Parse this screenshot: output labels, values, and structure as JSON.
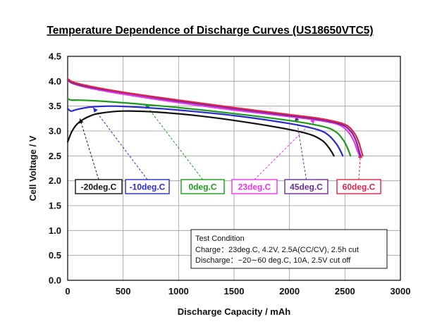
{
  "chart_data": {
    "type": "line",
    "title": "Temperature Dependence of Discharge Curves (US18650VTC5)",
    "xlabel": "Discharge Capacity / mAh",
    "ylabel": "Cell Voltage / V",
    "xlim": [
      0,
      3000
    ],
    "ylim": [
      0,
      4.5
    ],
    "x_ticks": [
      "0",
      "500",
      "1000",
      "1500",
      "2000",
      "2500",
      "3000"
    ],
    "y_ticks": [
      "0.0",
      "0.5",
      "1.0",
      "1.5",
      "2.0",
      "2.5",
      "3.0",
      "3.5",
      "4.0",
      "4.5"
    ],
    "grid": true,
    "series": [
      {
        "name": "-20deg.C",
        "color": "#111111",
        "x": [
          0,
          40,
          100,
          200,
          300,
          500,
          800,
          1200,
          1600,
          2000,
          2200,
          2300,
          2350,
          2380,
          2400
        ],
        "y": [
          2.78,
          3.0,
          3.17,
          3.3,
          3.36,
          3.4,
          3.38,
          3.3,
          3.18,
          3.03,
          2.92,
          2.8,
          2.68,
          2.58,
          2.5
        ]
      },
      {
        "name": "-10deg.C",
        "color": "#2a2acc",
        "x": [
          0,
          30,
          80,
          200,
          400,
          700,
          1000,
          1500,
          2000,
          2250,
          2350,
          2420,
          2460,
          2480
        ],
        "y": [
          3.45,
          3.4,
          3.43,
          3.48,
          3.5,
          3.47,
          3.42,
          3.31,
          3.15,
          3.03,
          2.92,
          2.75,
          2.6,
          2.5
        ]
      },
      {
        "name": "0deg.C",
        "color": "#1a9a1a",
        "x": [
          0,
          30,
          100,
          300,
          600,
          1000,
          1500,
          2000,
          2300,
          2420,
          2490,
          2530,
          2550
        ],
        "y": [
          3.65,
          3.62,
          3.62,
          3.6,
          3.55,
          3.47,
          3.35,
          3.21,
          3.09,
          2.98,
          2.8,
          2.62,
          2.5
        ]
      },
      {
        "name": "23deg.C",
        "color": "#ee33ee",
        "x": [
          0,
          50,
          200,
          500,
          1000,
          1500,
          2000,
          2300,
          2450,
          2530,
          2580,
          2610,
          2630
        ],
        "y": [
          4.02,
          3.95,
          3.86,
          3.74,
          3.57,
          3.42,
          3.29,
          3.2,
          3.12,
          2.98,
          2.8,
          2.62,
          2.5
        ]
      },
      {
        "name": "45deg.C",
        "color": "#6a2a9a",
        "x": [
          0,
          50,
          200,
          500,
          1000,
          1500,
          2000,
          2300,
          2480,
          2560,
          2600,
          2625,
          2640
        ],
        "y": [
          4.03,
          3.96,
          3.88,
          3.77,
          3.6,
          3.45,
          3.31,
          3.22,
          3.12,
          2.97,
          2.8,
          2.62,
          2.5
        ]
      },
      {
        "name": "60deg.C",
        "color": "#e0224a",
        "x": [
          0,
          50,
          200,
          500,
          1000,
          1500,
          2000,
          2300,
          2500,
          2580,
          2620,
          2645,
          2660
        ],
        "y": [
          4.05,
          3.98,
          3.9,
          3.78,
          3.62,
          3.47,
          3.33,
          3.24,
          3.13,
          2.97,
          2.8,
          2.62,
          2.5
        ]
      }
    ],
    "legend": [
      {
        "label": "-20deg.C",
        "color": "#111111",
        "text_color": "#111111"
      },
      {
        "label": "-10deg.C",
        "color": "#2a2acc",
        "text_color": "#2a2acc"
      },
      {
        "label": "0deg.C",
        "color": "#1a9a1a",
        "text_color": "#1a9a1a"
      },
      {
        "label": "23deg.C",
        "color": "#ee33ee",
        "text_color": "#ee33ee"
      },
      {
        "label": "45deg.C",
        "color": "#6a2a9a",
        "text_color": "#6a2a9a"
      },
      {
        "label": "60deg.C",
        "color": "#e0224a",
        "text_color": "#e0224a"
      }
    ],
    "pointers": [
      {
        "series": "-20deg.C",
        "x": 110,
        "y": 3.25
      },
      {
        "series": "-10deg.C",
        "x": 230,
        "y": 3.47
      },
      {
        "series": "0deg.C",
        "x": 700,
        "y": 3.54
      },
      {
        "series": "23deg.C",
        "x": 2230,
        "y": 3.24
      },
      {
        "series": "45deg.C",
        "x": 2060,
        "y": 3.3
      },
      {
        "series": "60deg.C",
        "x": 2640,
        "y": 2.55
      }
    ],
    "annotation": {
      "title": "Test Condition",
      "lines": [
        "Charge：23deg.C, 4.2V, 2.5A(CC/CV), 2.5h cut",
        "Discharge：−20∼60 deg.C, 10A, 2.5V cut off"
      ]
    }
  }
}
